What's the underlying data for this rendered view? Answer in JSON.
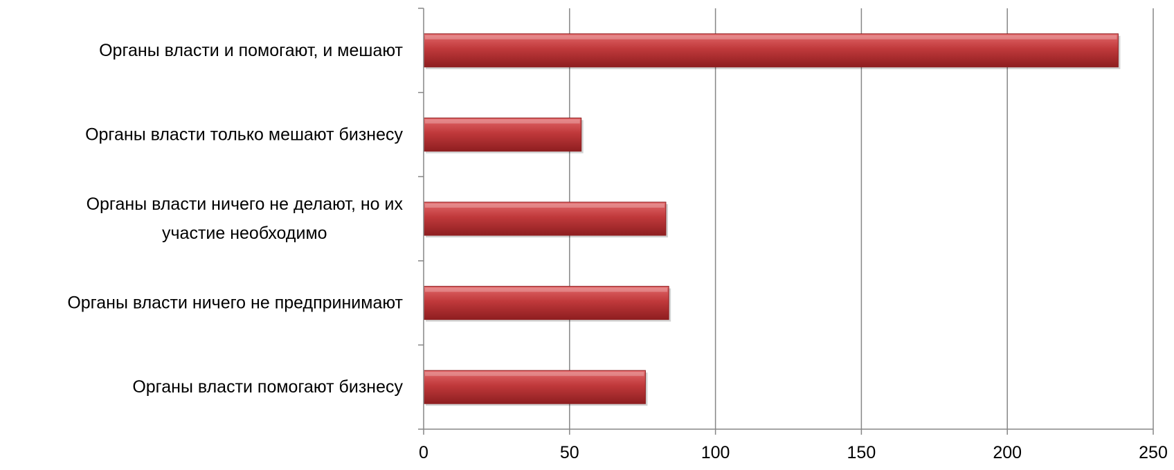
{
  "chart_data": {
    "type": "bar",
    "orientation": "horizontal",
    "categories": [
      "Органы власти и помогают, и мешают",
      "Органы власти только мешают бизнесу",
      "Органы власти ничего не делают, но их участие необходимо",
      "Органы власти ничего не предпринимают",
      "Органы власти помогают бизнесу"
    ],
    "category_lines": [
      [
        "Органы власти и помогают, и мешают"
      ],
      [
        "Органы власти только мешают бизнесу"
      ],
      [
        "Органы власти ничего не делают, но их",
        "участие необходимо"
      ],
      [
        "Органы власти ничего не предпринимают"
      ],
      [
        "Органы власти помогают бизнесу"
      ]
    ],
    "values": [
      238,
      54,
      83,
      84,
      76
    ],
    "xlim": [
      0,
      250
    ],
    "xticks": [
      "0",
      "50",
      "100",
      "150",
      "200",
      "250"
    ],
    "xtick_values": [
      0,
      50,
      100,
      150,
      200,
      250
    ],
    "title": "",
    "xlabel": "",
    "ylabel": "",
    "grid": "vertical",
    "legend": "none",
    "bar_color": "#c0393b",
    "bar_highlight": "#e2686a",
    "bar_shadow": "#8e1e20",
    "grid_color": "#868686"
  }
}
